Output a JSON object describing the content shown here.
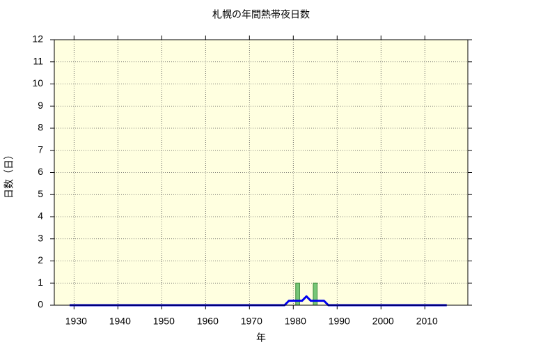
{
  "chart_data": {
    "type": "bar-line",
    "title": "札幌の年間熱帯夜日数",
    "x_label": "年",
    "y_label": "日数（日）",
    "x": [
      1927,
      1928,
      1929,
      1930,
      1931,
      1932,
      1933,
      1934,
      1935,
      1936,
      1937,
      1938,
      1939,
      1940,
      1941,
      1942,
      1943,
      1944,
      1945,
      1946,
      1947,
      1948,
      1949,
      1950,
      1951,
      1952,
      1953,
      1954,
      1955,
      1956,
      1957,
      1958,
      1959,
      1960,
      1961,
      1962,
      1963,
      1964,
      1965,
      1966,
      1967,
      1968,
      1969,
      1970,
      1971,
      1972,
      1973,
      1974,
      1975,
      1976,
      1977,
      1978,
      1979,
      1980,
      1981,
      1982,
      1983,
      1984,
      1985,
      1986,
      1987,
      1988,
      1989,
      1990,
      1991,
      1992,
      1993,
      1994,
      1995,
      1996,
      1997,
      1998,
      1999,
      2000,
      2001,
      2002,
      2003,
      2004,
      2005,
      2006,
      2007,
      2008,
      2009,
      2010,
      2011,
      2012,
      2013,
      2014,
      2015,
      2016,
      2017
    ],
    "series": [
      {
        "type": "bar",
        "color": "#77c777",
        "values": [
          0,
          0,
          0,
          0,
          0,
          0,
          0,
          0,
          0,
          0,
          0,
          0,
          0,
          0,
          0,
          0,
          0,
          0,
          0,
          0,
          0,
          0,
          0,
          0,
          0,
          0,
          0,
          0,
          0,
          0,
          0,
          0,
          0,
          0,
          0,
          0,
          0,
          0,
          0,
          0,
          0,
          0,
          0,
          0,
          0,
          0,
          0,
          0,
          0,
          0,
          0,
          0,
          0,
          0,
          1,
          0,
          0,
          0,
          1,
          0,
          0,
          0,
          0,
          0,
          0,
          0,
          0,
          0,
          0,
          0,
          0,
          0,
          0,
          0,
          0,
          0,
          0,
          0,
          0,
          0,
          0,
          0,
          0,
          0,
          0,
          0,
          0,
          0,
          0,
          0,
          0
        ]
      },
      {
        "type": "line",
        "color": "#0000ee",
        "values": [
          null,
          null,
          0,
          0,
          0,
          0,
          0,
          0,
          0,
          0,
          0,
          0,
          0,
          0,
          0,
          0,
          0,
          0,
          0,
          0,
          0,
          0,
          0,
          0,
          0,
          0,
          0,
          0,
          0,
          0,
          0,
          0,
          0,
          0,
          0,
          0,
          0,
          0,
          0,
          0,
          0,
          0,
          0,
          0,
          0,
          0,
          0,
          0,
          0,
          0,
          0,
          0,
          0.2,
          0.2,
          0.2,
          0.2,
          0.4,
          0.2,
          0.2,
          0.2,
          0.2,
          0,
          0,
          0,
          0,
          0,
          0,
          0,
          0,
          0,
          0,
          0,
          0,
          0,
          0,
          0,
          0,
          0,
          0,
          0,
          0,
          0,
          0,
          0,
          0,
          0,
          0,
          0,
          0,
          null,
          null
        ]
      }
    ],
    "xlim": [
      1925.5,
      2019.8
    ],
    "xticks": [
      1930,
      1940,
      1950,
      1960,
      1970,
      1980,
      1990,
      2000,
      2010
    ],
    "ylim": [
      0,
      12
    ],
    "yticks": [
      0,
      1,
      2,
      3,
      4,
      5,
      6,
      7,
      8,
      9,
      10,
      11,
      12
    ],
    "grid": true,
    "background": "#ffffe0"
  }
}
